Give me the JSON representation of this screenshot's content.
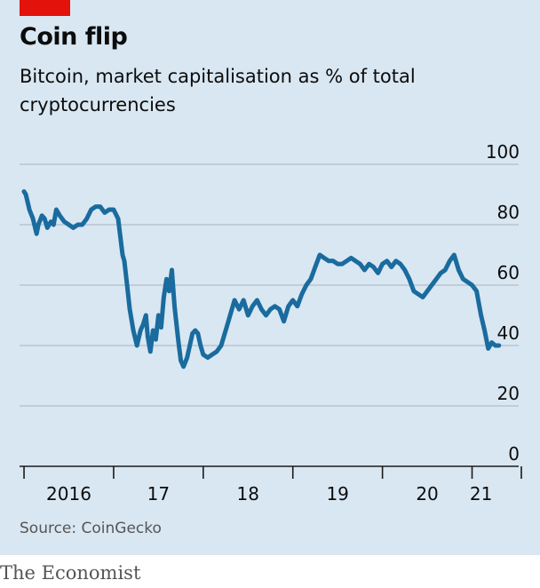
{
  "header": {
    "title": "Coin flip",
    "subtitle": "Bitcoin, market capitalisation as % of total cryptocurrencies"
  },
  "footer": {
    "source": "Source: CoinGecko",
    "brand": "The Economist"
  },
  "colors": {
    "background": "#d9e7f2",
    "line": "#1a6b9e",
    "accent": "#e3120b",
    "gridline": "#b8c6d1",
    "axis": "#1a1a1a",
    "text": "#0c0c0c"
  },
  "chart_data": {
    "type": "line",
    "title": "Coin flip",
    "subtitle": "Bitcoin, market capitalisation as % of total cryptocurrencies",
    "xlabel": "",
    "ylabel": "",
    "xlim": [
      2015.95,
      2021.55
    ],
    "ylim": [
      0,
      100
    ],
    "y_ticks": [
      0,
      20,
      40,
      60,
      80,
      100
    ],
    "y_tick_labels": [
      "0",
      "20",
      "40",
      "60",
      "80",
      "100"
    ],
    "x_boundaries": [
      2016,
      2017,
      2018,
      2019,
      2020,
      2021,
      2021.55
    ],
    "x_tick_labels": [
      {
        "label": "2016",
        "x": 2016.5
      },
      {
        "label": "17",
        "x": 2017.5
      },
      {
        "label": "18",
        "x": 2018.5
      },
      {
        "label": "19",
        "x": 2019.5
      },
      {
        "label": "20",
        "x": 2020.5
      },
      {
        "label": "21",
        "x": 2021.1
      }
    ],
    "grid": true,
    "legend": "none",
    "series": [
      {
        "x": [
          2016.0,
          2016.02,
          2016.06,
          2016.1,
          2016.14,
          2016.16,
          2016.2,
          2016.23,
          2016.26,
          2016.3,
          2016.33,
          2016.36,
          2016.4,
          2016.45,
          2016.5,
          2016.55,
          2016.6,
          2016.65,
          2016.7,
          2016.75,
          2016.8,
          2016.85,
          2016.9,
          2016.95,
          2017.0,
          2017.05,
          2017.1,
          2017.12,
          2017.15,
          2017.18,
          2017.22,
          2017.26,
          2017.3,
          2017.33,
          2017.36,
          2017.38,
          2017.41,
          2017.44,
          2017.47,
          2017.5,
          2017.53,
          2017.56,
          2017.59,
          2017.62,
          2017.65,
          2017.68,
          2017.72,
          2017.75,
          2017.78,
          2017.82,
          2017.85,
          2017.88,
          2017.91,
          2017.94,
          2017.97,
          2018.0,
          2018.05,
          2018.1,
          2018.15,
          2018.2,
          2018.25,
          2018.3,
          2018.35,
          2018.4,
          2018.45,
          2018.5,
          2018.55,
          2018.6,
          2018.65,
          2018.7,
          2018.75,
          2018.8,
          2018.85,
          2018.9,
          2018.95,
          2019.0,
          2019.05,
          2019.1,
          2019.15,
          2019.2,
          2019.25,
          2019.3,
          2019.35,
          2019.4,
          2019.45,
          2019.5,
          2019.55,
          2019.6,
          2019.65,
          2019.7,
          2019.75,
          2019.8,
          2019.85,
          2019.9,
          2019.95,
          2020.0,
          2020.05,
          2020.1,
          2020.15,
          2020.2,
          2020.25,
          2020.3,
          2020.35,
          2020.4,
          2020.45,
          2020.5,
          2020.55,
          2020.6,
          2020.65,
          2020.7,
          2020.75,
          2020.8,
          2020.85,
          2020.9,
          2020.95,
          2021.0,
          2021.05,
          2021.1,
          2021.14,
          2021.18,
          2021.2,
          2021.22,
          2021.26,
          2021.3
        ],
        "values": [
          91,
          90,
          85,
          82,
          77,
          80,
          83,
          82,
          79,
          81,
          80,
          85,
          83,
          81,
          80,
          79,
          80,
          80,
          82,
          85,
          86,
          86,
          84,
          85,
          85,
          82,
          70,
          68,
          60,
          52,
          45,
          40,
          45,
          47,
          50,
          43,
          38,
          45,
          42,
          50,
          46,
          56,
          62,
          58,
          65,
          53,
          42,
          35,
          33,
          36,
          40,
          44,
          45,
          44,
          40,
          37,
          36,
          37,
          38,
          40,
          45,
          50,
          55,
          52,
          55,
          50,
          53,
          55,
          52,
          50,
          52,
          53,
          52,
          48,
          53,
          55,
          53,
          57,
          60,
          62,
          66,
          70,
          69,
          68,
          68,
          67,
          67,
          68,
          69,
          68,
          67,
          65,
          67,
          66,
          64,
          67,
          68,
          66,
          68,
          67,
          65,
          62,
          58,
          57,
          56,
          58,
          60,
          62,
          64,
          65,
          68,
          70,
          65,
          62,
          61,
          60,
          58,
          50,
          45,
          39,
          40,
          41,
          40,
          40
        ]
      }
    ]
  }
}
